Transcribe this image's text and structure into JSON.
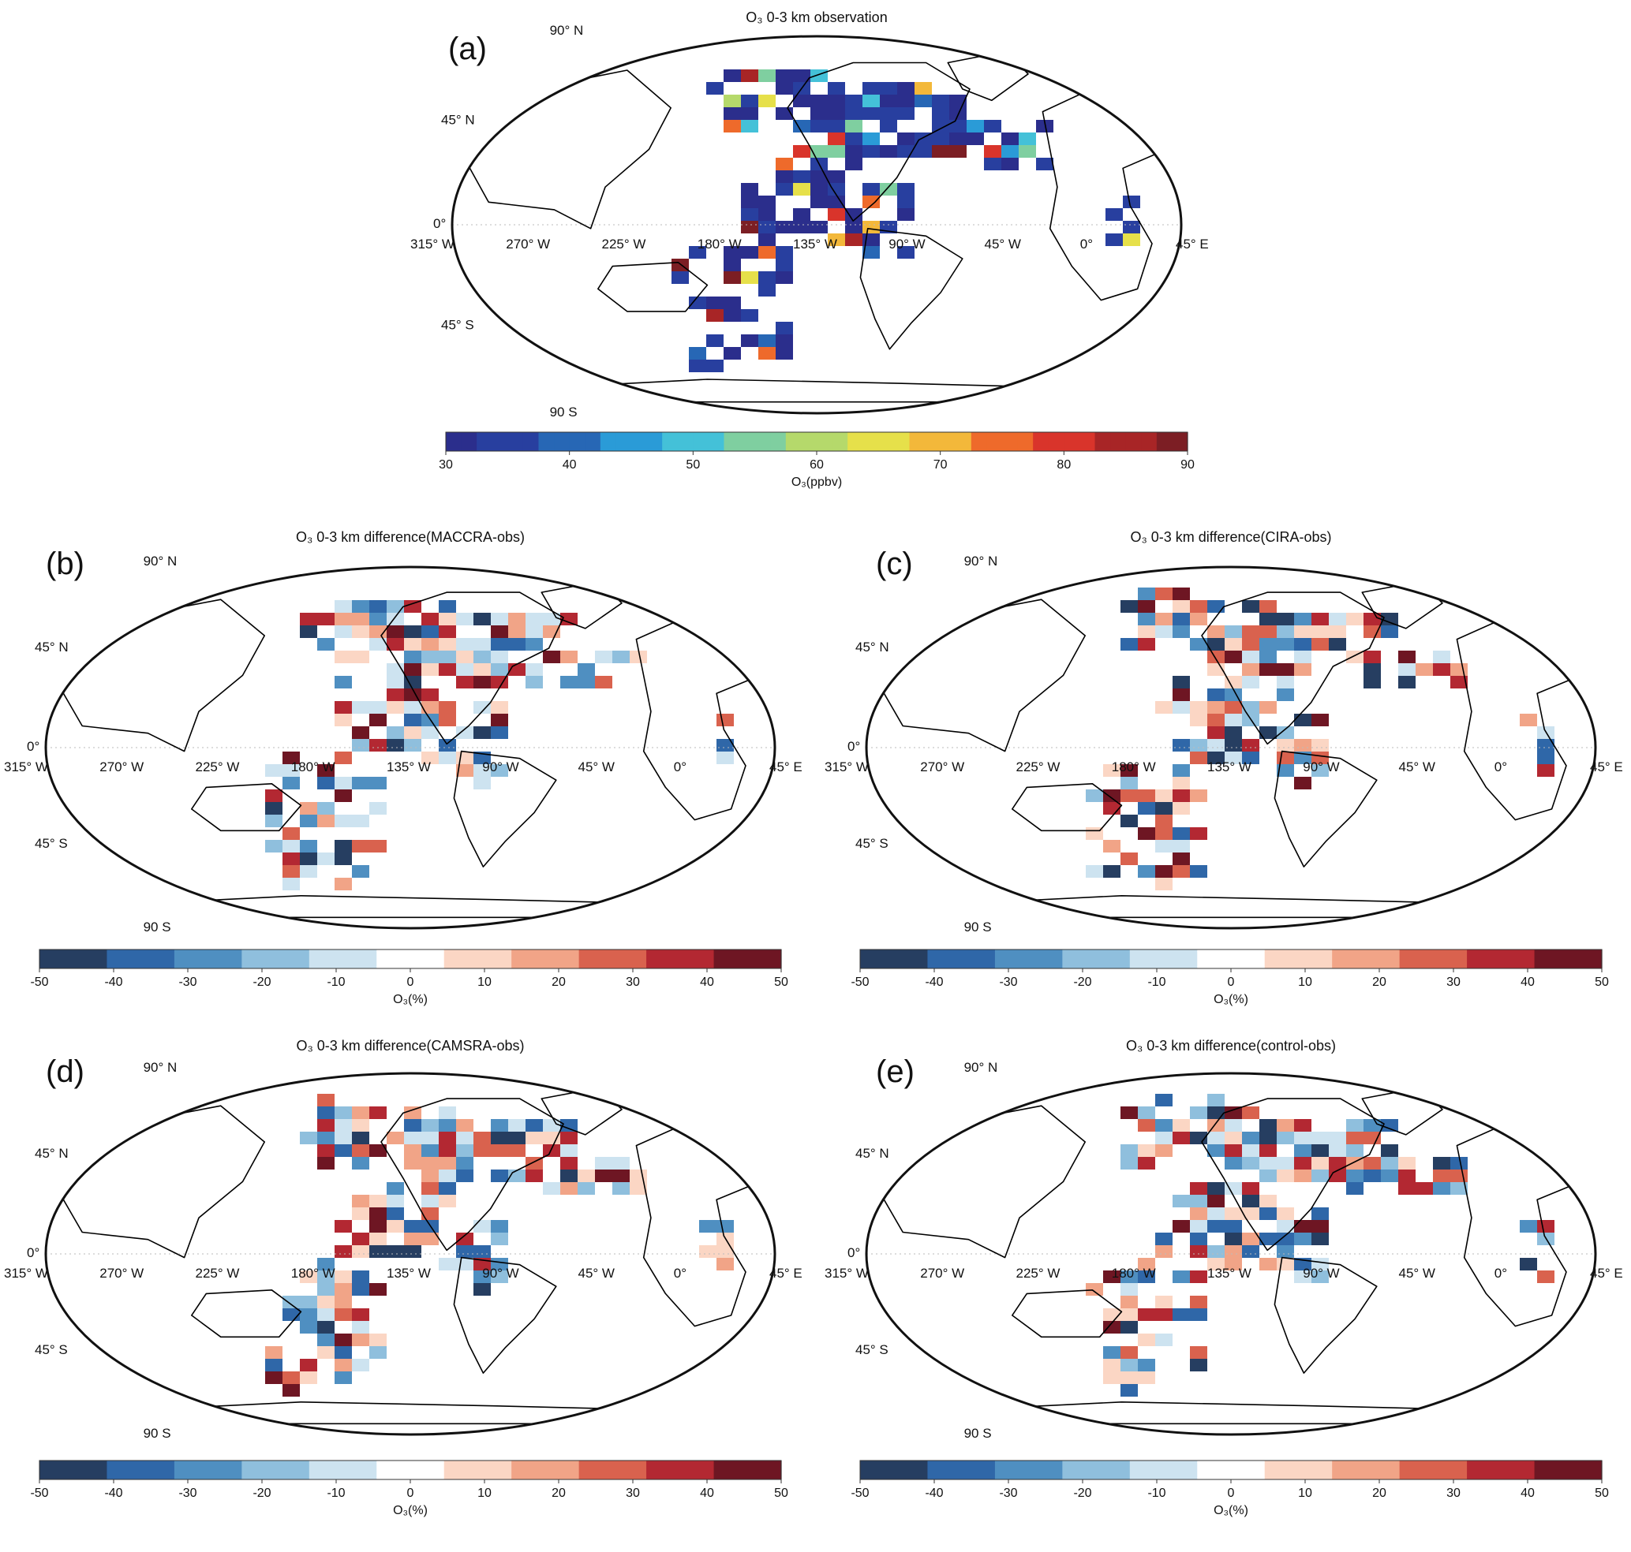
{
  "panels": [
    {
      "id": "a",
      "letter": "(a)",
      "title": "O₃ 0-3 km observation",
      "colorbar": {
        "type": "continuous",
        "ticks": [
          "30",
          "40",
          "50",
          "60",
          "70",
          "80",
          "90"
        ],
        "label": "O₃(ppbv)",
        "colors": [
          "#2b2e8c",
          "#283f9f",
          "#2767b5",
          "#2a9bd7",
          "#44c1d8",
          "#7fcfa0",
          "#b5d96b",
          "#e6e04a",
          "#f3b83a",
          "#ee6a2b",
          "#d9342b",
          "#a82526",
          "#7c1e24"
        ]
      },
      "lat_labels": [
        "90° N",
        "45° N",
        "0°",
        "45° S",
        "90 S"
      ],
      "lon_labels": [
        "315° W",
        "270° W",
        "225° W",
        "180° W",
        "135° W",
        "90° W",
        "45° W",
        "0°",
        "45° E"
      ]
    },
    {
      "id": "b",
      "letter": "(b)",
      "title": "O₃ 0-3 km difference(MACCRA-obs)",
      "colorbar": {
        "type": "discrete",
        "ticks": [
          "-50",
          "-40",
          "-30",
          "-20",
          "-10",
          "0",
          "10",
          "20",
          "30",
          "40",
          "50"
        ],
        "label": "O₃(%)",
        "colors": [
          "#263e61",
          "#2f67a8",
          "#4f8fc1",
          "#8fbfdd",
          "#cde3f0",
          "#ffffff",
          "#fbd6c4",
          "#f1a487",
          "#d9624e",
          "#b32832",
          "#6e1623"
        ]
      },
      "lat_labels": [
        "90° N",
        "45° N",
        "0°",
        "45° S",
        "90 S"
      ],
      "lon_labels": [
        "315° W",
        "270° W",
        "225° W",
        "180° W",
        "135° W",
        "90° W",
        "45° W",
        "0°",
        "45° E"
      ]
    },
    {
      "id": "c",
      "letter": "(c)",
      "title": "O₃ 0-3 km difference(CIRA-obs)",
      "colorbar": {
        "type": "discrete",
        "ticks": [
          "-50",
          "-40",
          "-30",
          "-20",
          "-10",
          "0",
          "10",
          "20",
          "30",
          "40",
          "50"
        ],
        "label": "O₃(%)",
        "colors": [
          "#263e61",
          "#2f67a8",
          "#4f8fc1",
          "#8fbfdd",
          "#cde3f0",
          "#ffffff",
          "#fbd6c4",
          "#f1a487",
          "#d9624e",
          "#b32832",
          "#6e1623"
        ]
      },
      "lat_labels": [
        "90° N",
        "45° N",
        "0°",
        "45° S",
        "90 S"
      ],
      "lon_labels": [
        "315° W",
        "270° W",
        "225° W",
        "180° W",
        "135° W",
        "90° W",
        "45° W",
        "0°",
        "45° E"
      ]
    },
    {
      "id": "d",
      "letter": "(d)",
      "title": "O₃ 0-3 km difference(CAMSRA-obs)",
      "colorbar": {
        "type": "discrete",
        "ticks": [
          "-50",
          "-40",
          "-30",
          "-20",
          "-10",
          "0",
          "10",
          "20",
          "30",
          "40",
          "50"
        ],
        "label": "O₃(%)",
        "colors": [
          "#263e61",
          "#2f67a8",
          "#4f8fc1",
          "#8fbfdd",
          "#cde3f0",
          "#ffffff",
          "#fbd6c4",
          "#f1a487",
          "#d9624e",
          "#b32832",
          "#6e1623"
        ]
      },
      "lat_labels": [
        "90° N",
        "45° N",
        "0°",
        "45° S",
        "90 S"
      ],
      "lon_labels": [
        "315° W",
        "270° W",
        "225° W",
        "180° W",
        "135° W",
        "90° W",
        "45° W",
        "0°",
        "45° E"
      ]
    },
    {
      "id": "e",
      "letter": "(e)",
      "title": "O₃ 0-3 km difference(control-obs)",
      "colorbar": {
        "type": "discrete",
        "ticks": [
          "-50",
          "-40",
          "-30",
          "-20",
          "-10",
          "0",
          "10",
          "20",
          "30",
          "40",
          "50"
        ],
        "label": "O₃(%)",
        "colors": [
          "#263e61",
          "#2f67a8",
          "#4f8fc1",
          "#8fbfdd",
          "#cde3f0",
          "#ffffff",
          "#fbd6c4",
          "#f1a487",
          "#d9624e",
          "#b32832",
          "#6e1623"
        ]
      },
      "lat_labels": [
        "90° N",
        "45° N",
        "0°",
        "45° S",
        "90 S"
      ],
      "lon_labels": [
        "315° W",
        "270° W",
        "225° W",
        "180° W",
        "135° W",
        "90° W",
        "45° W",
        "0°",
        "45° E"
      ]
    }
  ]
}
